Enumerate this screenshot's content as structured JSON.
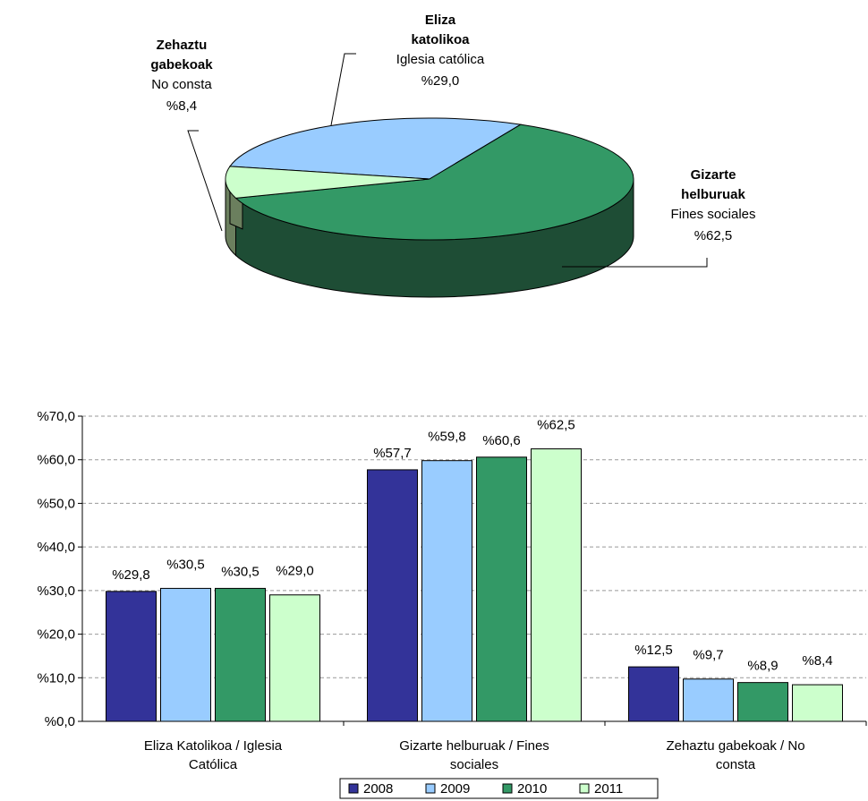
{
  "pie": {
    "slices": [
      {
        "key": "eliza",
        "name_bold": [
          "Eliza",
          "katolikoa"
        ],
        "name": "Iglesia católica",
        "value": 29.0,
        "label": "%29,0",
        "color": "#99ccff",
        "side": "#6a8fb3"
      },
      {
        "key": "gizarte",
        "name_bold": [
          "Gizarte",
          "helburuak"
        ],
        "name": "Fines sociales",
        "value": 62.5,
        "label": "%62,5",
        "color": "#339966",
        "side": "#1e4d35"
      },
      {
        "key": "zehaztu",
        "name_bold": [
          "Zehaztu",
          "gabekoak"
        ],
        "name": "No consta",
        "value": 8.4,
        "label": "%8,4",
        "color": "#ccffcc",
        "side": "#6b7f5e"
      }
    ]
  },
  "chart_data": {
    "type": "bar",
    "categories": [
      [
        "Eliza Katolikoa /  Iglesia",
        "Católica"
      ],
      [
        "Gizarte helburuak /  Fines",
        "sociales"
      ],
      [
        "Zehaztu gabekoak / No",
        "consta"
      ]
    ],
    "series": [
      {
        "name": "2008",
        "color": "#333399",
        "values": [
          29.8,
          57.7,
          12.5
        ],
        "labels": [
          "%29,8",
          "%57,7",
          "%12,5"
        ]
      },
      {
        "name": "2009",
        "color": "#99ccff",
        "values": [
          30.5,
          59.8,
          9.7
        ],
        "labels": [
          "%30,5",
          "%59,8",
          "%9,7"
        ]
      },
      {
        "name": "2010",
        "color": "#339966",
        "values": [
          30.5,
          60.6,
          8.9
        ],
        "labels": [
          "%30,5",
          "%60,6",
          "%8,9"
        ]
      },
      {
        "name": "2011",
        "color": "#ccffcc",
        "values": [
          29.0,
          62.5,
          8.4
        ],
        "labels": [
          "%29,0",
          "%62,5",
          "%8,4"
        ]
      }
    ],
    "ylim": [
      0,
      70
    ],
    "yticks": [
      0,
      10,
      20,
      30,
      40,
      50,
      60,
      70
    ],
    "ytick_labels": [
      "%0,0",
      "%10,0",
      "%20,0",
      "%30,0",
      "%40,0",
      "%50,0",
      "%60,0",
      "%70,0"
    ],
    "grid": true,
    "legend_position": "bottom"
  }
}
